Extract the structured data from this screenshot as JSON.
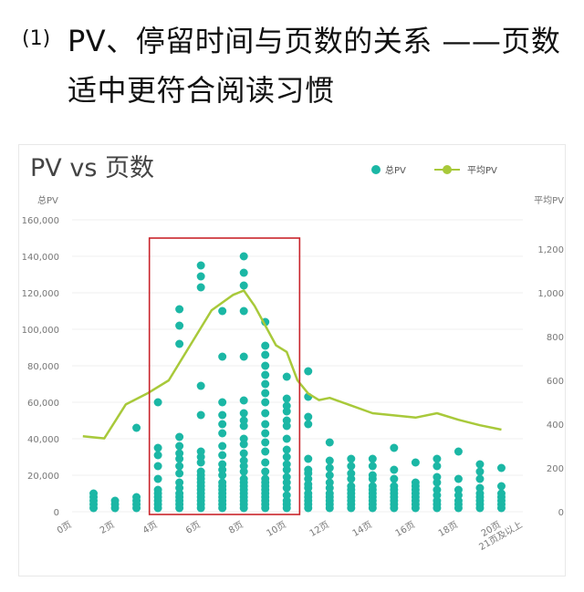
{
  "heading": {
    "number": "(1)",
    "line1": "PV、停留时间与页数的关系 ——页数",
    "line2": "适中更符合阅读习惯"
  },
  "chart_data": {
    "type": "scatter",
    "title": "PV vs 页数",
    "y_left_label": "总PV",
    "y_right_label": "平均PV",
    "legend": {
      "placement": "top-right",
      "scatter_label": "总PV",
      "line_label": "平均PV"
    },
    "colors": {
      "scatter": "#1bb7a5",
      "line": "#a8c93a",
      "highlight_box": "#c9242b",
      "grid": "#efefef",
      "axis_text": "#777777"
    },
    "x_categories": [
      "0页",
      "2页",
      "4页",
      "6页",
      "8页",
      "10页",
      "12页",
      "14页",
      "16页",
      "18页",
      "20页",
      "21页及以上"
    ],
    "x_range": [
      0,
      21
    ],
    "y_left_ticks": [
      "0",
      "20,000",
      "40,000",
      "60,000",
      "80,000",
      "100,000",
      "120,000",
      "140,000",
      "160,000"
    ],
    "y_left_range": [
      0,
      160000
    ],
    "y_right_ticks": [
      "0",
      "200",
      "400",
      "600",
      "800",
      "1,000",
      "1,200"
    ],
    "y_right_range": [
      0,
      1333
    ],
    "highlight_pages": [
      3.6,
      10.6
    ],
    "scatter_points": [
      {
        "page": 1,
        "values": [
          2000,
          4000,
          6000,
          8000,
          10000
        ]
      },
      {
        "page": 2,
        "values": [
          2000,
          4000,
          6000
        ]
      },
      {
        "page": 3,
        "values": [
          2000,
          4000,
          6000,
          8000,
          46000
        ]
      },
      {
        "page": 4,
        "values": [
          2000,
          4000,
          6000,
          8000,
          10000,
          12000,
          18000,
          25000,
          31000,
          35000,
          60000
        ]
      },
      {
        "page": 5,
        "values": [
          2000,
          4000,
          6000,
          8000,
          10000,
          13000,
          16000,
          21000,
          25000,
          29000,
          32000,
          36000,
          41000,
          92000,
          102000,
          111000
        ]
      },
      {
        "page": 6,
        "values": [
          2000,
          4000,
          6000,
          8000,
          10000,
          12000,
          14000,
          16000,
          18000,
          20000,
          22000,
          27000,
          30000,
          33000,
          53000,
          69000,
          123000,
          129000,
          135000
        ]
      },
      {
        "page": 7,
        "values": [
          2000,
          4000,
          6000,
          8000,
          10000,
          12000,
          14000,
          16000,
          20000,
          23000,
          26000,
          31000,
          36000,
          43000,
          48000,
          53000,
          60000,
          85000,
          110000
        ]
      },
      {
        "page": 8,
        "values": [
          2000,
          4000,
          6000,
          8000,
          10000,
          12000,
          14000,
          16000,
          18000,
          22000,
          25000,
          28000,
          32000,
          37000,
          40000,
          47000,
          50000,
          54000,
          61000,
          85000,
          110000,
          124000,
          131000,
          140000
        ]
      },
      {
        "page": 9,
        "values": [
          2000,
          4000,
          6000,
          8000,
          10000,
          12000,
          14000,
          16000,
          18000,
          22000,
          27000,
          33000,
          38000,
          43000,
          48000,
          54000,
          60000,
          65000,
          70000,
          75000,
          80000,
          86000,
          91000,
          104000
        ]
      },
      {
        "page": 10,
        "values": [
          2000,
          4000,
          6000,
          9000,
          13000,
          16000,
          19000,
          23000,
          26000,
          30000,
          34000,
          40000,
          47000,
          50000,
          55000,
          58000,
          62000,
          74000
        ]
      },
      {
        "page": 11,
        "values": [
          2000,
          4000,
          6000,
          8000,
          10000,
          13000,
          15000,
          18000,
          21000,
          23000,
          29000,
          48000,
          52000,
          63000,
          77000
        ]
      },
      {
        "page": 12,
        "values": [
          2000,
          4000,
          6000,
          8000,
          10000,
          13000,
          16000,
          20000,
          24000,
          28000,
          38000
        ]
      },
      {
        "page": 13,
        "values": [
          2000,
          4000,
          6000,
          8000,
          10000,
          12000,
          14000,
          18000,
          21000,
          25000,
          29000
        ]
      },
      {
        "page": 14,
        "values": [
          2000,
          4000,
          6000,
          8000,
          10000,
          12000,
          14000,
          18000,
          20000,
          25000,
          29000
        ]
      },
      {
        "page": 15,
        "values": [
          2000,
          4000,
          6000,
          8000,
          10000,
          12000,
          14000,
          18000,
          23000,
          35000
        ]
      },
      {
        "page": 16,
        "values": [
          2000,
          4000,
          6000,
          8000,
          10000,
          12000,
          14000,
          16000,
          27000
        ]
      },
      {
        "page": 17,
        "values": [
          2000,
          4000,
          6000,
          9000,
          12000,
          16000,
          19000,
          25000,
          29000
        ]
      },
      {
        "page": 18,
        "values": [
          2000,
          4000,
          6000,
          9000,
          12000,
          18000,
          33000
        ]
      },
      {
        "page": 19,
        "values": [
          2000,
          4000,
          6000,
          8000,
          10000,
          13000,
          18000,
          22000,
          26000
        ]
      },
      {
        "page": 20,
        "values": [
          2000,
          4000,
          6000,
          8000,
          10000,
          14000,
          24000
        ]
      }
    ],
    "avg_line": {
      "pages": [
        0.5,
        1.5,
        2.5,
        3.5,
        4.5,
        5.5,
        6.5,
        7.5,
        8.0,
        8.5,
        9.5,
        10.0,
        10.5,
        11.0,
        11.5,
        12.0,
        13.0,
        14.0,
        15.0,
        16.0,
        17.0,
        18.0,
        19.0,
        20.0
      ],
      "values": [
        345,
        335,
        490,
        540,
        600,
        760,
        920,
        990,
        1010,
        940,
        760,
        730,
        600,
        540,
        510,
        520,
        485,
        450,
        440,
        430,
        450,
        420,
        395,
        375
      ]
    }
  }
}
